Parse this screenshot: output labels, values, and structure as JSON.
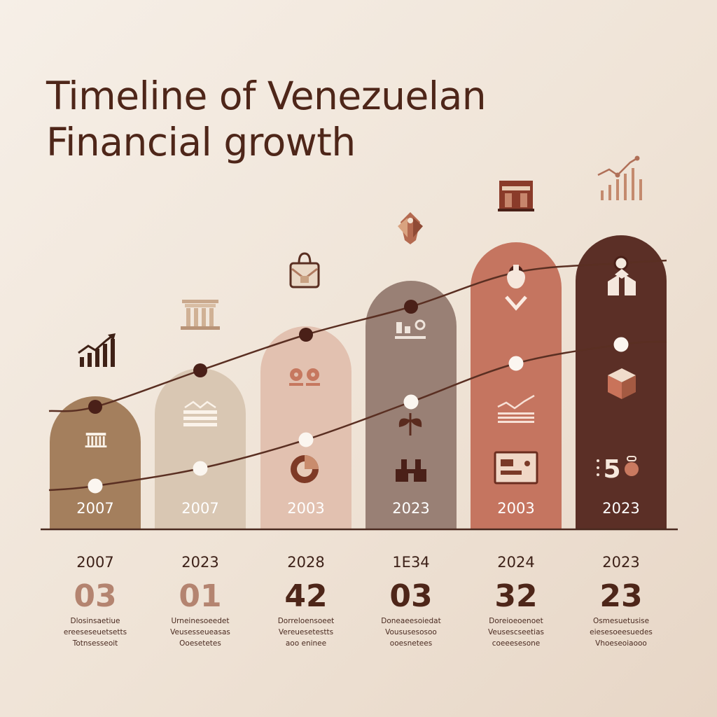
{
  "title": {
    "line1": "Timeline of Venezuelan",
    "line2": "Financial growth"
  },
  "colors": {
    "background": "#f3eadf",
    "text": "#4e2619",
    "line": "#5a2f22",
    "baseline": "#4a2a20"
  },
  "chart_data": {
    "type": "bar",
    "title": "Timeline of Venezuelan Financial growth",
    "categories": [
      "2007",
      "2007",
      "2003",
      "2023",
      "2003",
      "2023"
    ],
    "bar_colors": [
      "#a47f5d",
      "#d9c7b3",
      "#e2c1b0",
      "#998075",
      "#c57560",
      "#5b2f26"
    ],
    "bar_label_colors": [
      "#ffffff",
      "#ffffff",
      "#ffffff",
      "#ffffff",
      "#ffffff",
      "#ffffff"
    ],
    "values": [
      190,
      230,
      290,
      355,
      410,
      420
    ],
    "ylim": [
      0,
      440
    ],
    "series": [
      {
        "values": [
          175,
          227,
          278,
          318,
          367,
          380
        ],
        "marker": "dark"
      },
      {
        "values": [
          62,
          87,
          128,
          182,
          237,
          264
        ],
        "marker": "light"
      }
    ],
    "bar_icons": [
      [
        "bank-icon"
      ],
      [
        "ledger-icon"
      ],
      [
        "coins-icon",
        "target-icon"
      ],
      [
        "growth-icon",
        "leaf-icon",
        "warehouse-icon"
      ],
      [
        "money-bag-icon",
        "chevron-down-icon",
        "line-chart-icon",
        "monitor-icon"
      ],
      [
        "boxes-icon",
        "cube-icon",
        "coin-counter-icon"
      ]
    ],
    "top_icons": [
      "bar-chart-icon",
      "bank-icon",
      "briefcase-icon",
      "shield-icon",
      "building-icon",
      "trend-chart-icon"
    ],
    "counter_icon_text": "5",
    "below_years": [
      "2007",
      "2023",
      "2028",
      "1E34",
      "2024",
      "2023"
    ],
    "big_numbers": [
      "03",
      "01",
      "42",
      "03",
      "32",
      "23"
    ],
    "big_number_colors": [
      "#b48470",
      "#b48470",
      "#4e2619",
      "#4e2619",
      "#4e2619",
      "#4e2619"
    ],
    "descriptions": [
      [
        "Dlosinsaetiue",
        "ereeseseuetsetts",
        "Totnsesseoit"
      ],
      [
        "Urneinesoeedet",
        "Veusesseueasas",
        "Ooesetetes"
      ],
      [
        "Dorreloensoeet",
        "Vereuesetestts",
        "aoo eninee"
      ],
      [
        "Doneaeesoiedat",
        "Voususesosoo",
        "ooesnetees"
      ],
      [
        "Doreioeoenoet",
        "Veusescseetias",
        "coeeesesone"
      ],
      [
        "Osmesuetusise",
        "eiesesoeesuedes",
        "Vhoeseoiaooo"
      ]
    ]
  }
}
